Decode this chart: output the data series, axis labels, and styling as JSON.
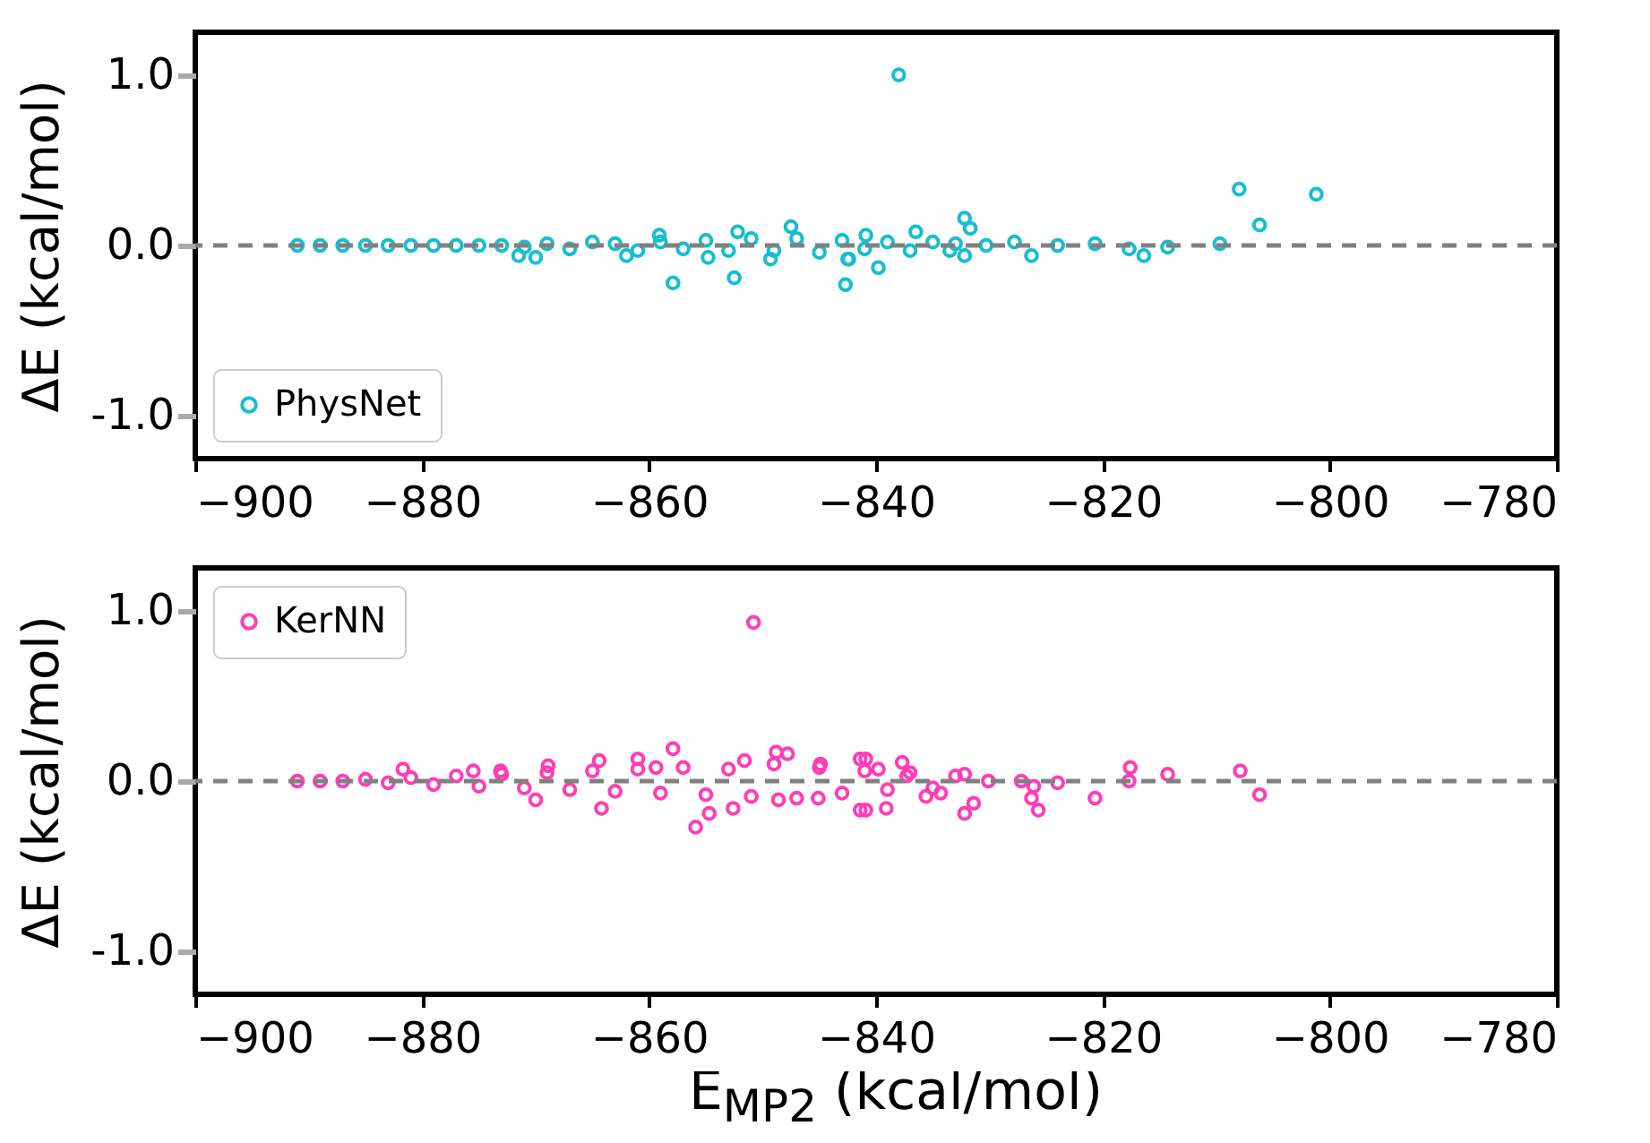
{
  "chart_data": [
    {
      "type": "scatter",
      "ylabel": "ΔE (kcal/mol)",
      "marker": "circle",
      "legend": "bottom left",
      "grid": false,
      "series": [
        {
          "name": "PhysNet",
          "color": "#17becf",
          "x": [
            -891,
            -889,
            -887,
            -885,
            -883,
            -881,
            -879,
            -877,
            -875,
            -873,
            -871,
            -869,
            -867,
            -865,
            -863,
            -861,
            -859,
            -857,
            -855,
            -853,
            -851,
            -849,
            -847,
            -845,
            -843,
            -841,
            -839,
            -837,
            -835,
            -833,
            -838,
            -808,
            -801.2,
            -806.2,
            -832.2,
            -831.7,
            -839.8,
            -842.7,
            -836.5,
            -840.9,
            -816.4,
            -814.3,
            -809.7,
            -817.7,
            -820.7,
            -824,
            -826.3,
            -827.8,
            -832.2,
            -830.3,
            -833.5,
            -842.4,
            -857.9,
            -852.5,
            -847.5,
            -852.2,
            -859.1,
            -870,
            -871.5,
            -849.3,
            -854.8,
            -842.5,
            -862
          ],
          "values": [
            0,
            0,
            0,
            0,
            0,
            0,
            0,
            0,
            0,
            0,
            -0.01,
            0.01,
            -0.02,
            0.02,
            0.01,
            -0.03,
            0.02,
            -0.02,
            0.03,
            -0.03,
            0.04,
            -0.03,
            0.04,
            -0.04,
            0.03,
            -0.02,
            0.02,
            -0.03,
            0.02,
            0.01,
            1.0,
            0.33,
            0.3,
            0.12,
            0.16,
            0.1,
            -0.13,
            -0.23,
            0.08,
            0.06,
            -0.06,
            -0.01,
            0.01,
            -0.02,
            0.01,
            0,
            -0.06,
            0.02,
            -0.06,
            0,
            -0.03,
            -0.08,
            -0.22,
            -0.19,
            0.11,
            0.08,
            0.06,
            -0.07,
            -0.06,
            -0.08,
            -0.07,
            -0.08,
            -0.06
          ]
        }
      ],
      "xlim": [
        -900,
        -780
      ],
      "xticks": [
        {
          "value": -900,
          "label": "−900"
        },
        {
          "value": -880,
          "label": "−880"
        },
        {
          "value": -860,
          "label": "−860"
        },
        {
          "value": -840,
          "label": "−840"
        },
        {
          "value": -820,
          "label": "−820"
        },
        {
          "value": -800,
          "label": "−800"
        },
        {
          "value": -780,
          "label": "−780"
        }
      ],
      "ylim": [
        -1.25,
        1.25
      ],
      "yticks": [
        {
          "value": -1,
          "label": "-1.0"
        },
        {
          "value": 0,
          "label": "0.0"
        },
        {
          "value": 1,
          "label": "1.0"
        }
      ],
      "ref_lines": [
        {
          "axis": "y",
          "value": 0,
          "color": "#808080",
          "line_style": "dashed"
        }
      ]
    },
    {
      "type": "scatter",
      "xlabel": "E$_{MP2}$ (kcal/mol)",
      "ylabel": "ΔE (kcal/mol)",
      "marker": "circle",
      "legend": "top left",
      "grid": false,
      "series": [
        {
          "name": "KerNN",
          "color": "#ff3eb5",
          "x": [
            -891,
            -889,
            -887,
            -885,
            -883,
            -881,
            -879,
            -877,
            -875,
            -873,
            -871,
            -869,
            -867,
            -865,
            -863,
            -861,
            -859,
            -857,
            -855,
            -853,
            -851,
            -849,
            -847,
            -845,
            -843,
            -841,
            -839,
            -837,
            -835,
            -833,
            -850.8,
            -857.9,
            -855.9,
            -854.7,
            -864.2,
            -848.8,
            -847.8,
            -864.4,
            -861,
            -881.7,
            -870,
            -852.6,
            -848.6,
            -845.1,
            -841.4,
            -841.4,
            -868.9,
            -875.5,
            -851.6,
            -859.4,
            -844.9,
            -873.1,
            -840.9,
            -837.7,
            -839.8,
            -840.9,
            -839.1,
            -832.2,
            -831.4,
            -835.6,
            -834.3,
            -832.2,
            -826.3,
            -825.7,
            -826.1,
            -827.2,
            -824,
            -820.7,
            -817.6,
            -817.7,
            -814.3,
            -807.9,
            -806.2,
            -830.1,
            -837.3
          ],
          "values": [
            0,
            0,
            0,
            0.01,
            -0.01,
            0.02,
            -0.02,
            0.03,
            -0.03,
            0.04,
            -0.04,
            0.05,
            -0.05,
            0.06,
            -0.06,
            0.07,
            -0.07,
            0.08,
            -0.08,
            0.07,
            -0.09,
            0.1,
            -0.1,
            0.08,
            -0.07,
            0.06,
            -0.05,
            0.05,
            -0.04,
            0.03,
            0.93,
            0.19,
            -0.27,
            -0.19,
            -0.16,
            0.17,
            0.16,
            0.12,
            0.13,
            0.07,
            -0.11,
            -0.16,
            -0.11,
            -0.1,
            -0.17,
            0.13,
            0.09,
            0.06,
            0.12,
            0.08,
            0.1,
            0.06,
            0.13,
            0.11,
            0.07,
            -0.17,
            -0.16,
            -0.19,
            -0.13,
            -0.09,
            -0.07,
            0.04,
            -0.1,
            -0.17,
            -0.03,
            0,
            -0.01,
            -0.1,
            0.08,
            0,
            0.04,
            0.06,
            -0.08,
            0,
            0.03
          ]
        }
      ],
      "xlim": [
        -900,
        -780
      ],
      "xticks": [
        {
          "value": -900,
          "label": "−900"
        },
        {
          "value": -880,
          "label": "−880"
        },
        {
          "value": -860,
          "label": "−860"
        },
        {
          "value": -840,
          "label": "−840"
        },
        {
          "value": -820,
          "label": "−820"
        },
        {
          "value": -800,
          "label": "−800"
        },
        {
          "value": -780,
          "label": "−780"
        }
      ],
      "ylim": [
        -1.25,
        1.25
      ],
      "yticks": [
        {
          "value": -1,
          "label": "-1.0"
        },
        {
          "value": 0,
          "label": "0.0"
        },
        {
          "value": 1,
          "label": "1.0"
        }
      ],
      "ref_lines": [
        {
          "axis": "y",
          "value": 0,
          "color": "#808080",
          "line_style": "dashed"
        }
      ]
    }
  ]
}
